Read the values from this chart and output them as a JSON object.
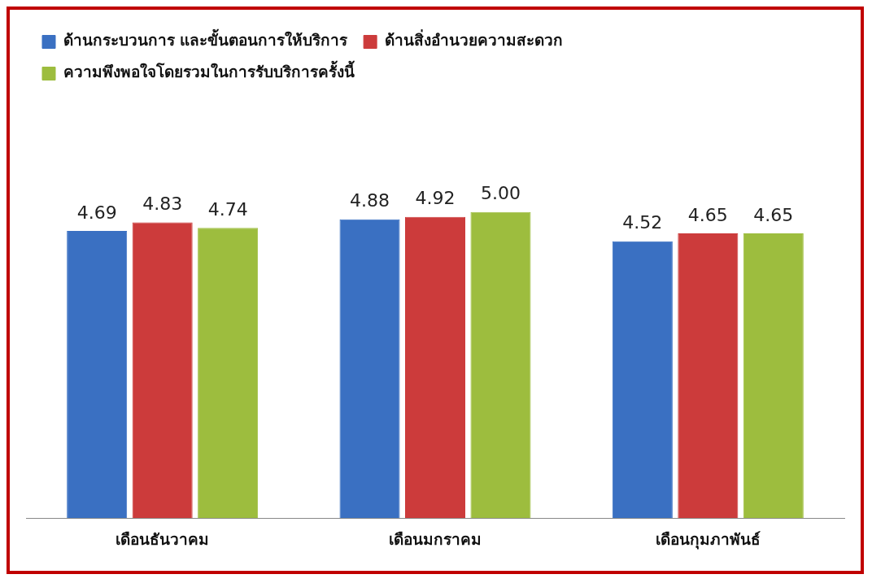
{
  "chart_data": {
    "type": "bar",
    "categories": [
      "เดือนธันวาคม",
      "เดือนมกราคม",
      "เดือนกุมภาพันธ์"
    ],
    "series": [
      {
        "name": "ด้านกระบวนการ และขั้นตอนการให้บริการ",
        "color": "#3a70c2",
        "values": [
          4.69,
          4.88,
          4.52
        ],
        "value_labels": [
          "4.69",
          "4.88",
          "4.52"
        ]
      },
      {
        "name": "ด้านสิ่งอำนวยความสะดวก",
        "color": "#cc3b3b",
        "values": [
          4.83,
          4.92,
          4.65
        ],
        "value_labels": [
          "4.83",
          "4.92",
          "4.65"
        ]
      },
      {
        "name": "ความพึงพอใจโดยรวมในการรับบริการครั้งนี้",
        "color": "#9dbd3e",
        "values": [
          4.74,
          5.0,
          4.65
        ],
        "value_labels": [
          "4.74",
          "5.00",
          "4.65"
        ]
      }
    ],
    "tick_labels": "x",
    "grid": false,
    "legend": "top left"
  }
}
